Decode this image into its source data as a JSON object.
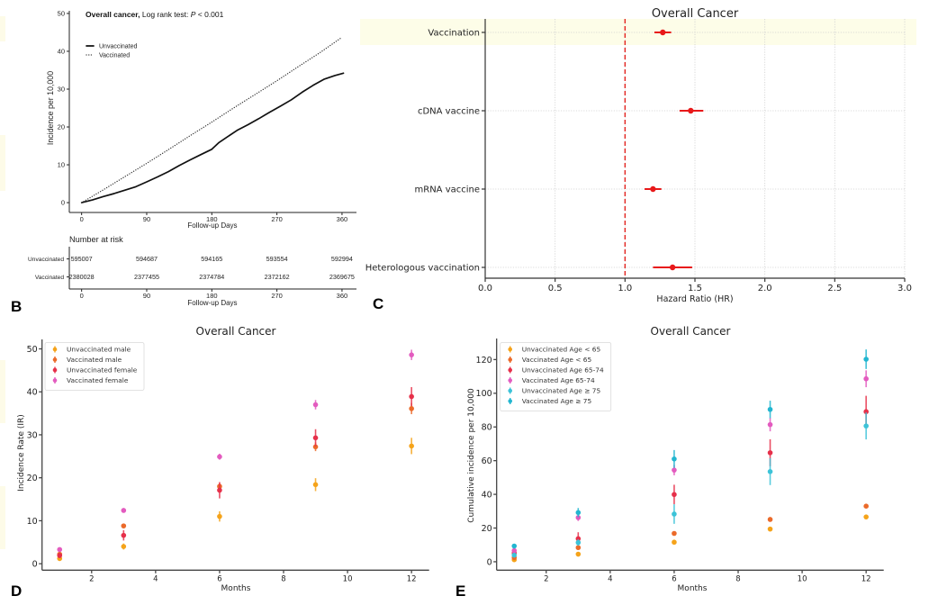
{
  "figure": {
    "panel_labels": {
      "B": "B",
      "C": "C",
      "D": "D",
      "E": "E"
    }
  },
  "chart_data": [
    {
      "panel": "B",
      "type": "line",
      "title": {
        "bold": "Overall cancer,",
        "text": " Log rank test: ",
        "p_symbol": "P",
        "p_value": " < 0.001"
      },
      "xlabel": "Follow-up Days",
      "ylabel": "Incidence per 10,000",
      "xlim": [
        -17,
        380
      ],
      "ylim": [
        -2.6,
        50.7
      ],
      "xticks": [
        0,
        90,
        180,
        270,
        360
      ],
      "yticks": [
        0,
        10,
        20,
        30,
        40,
        50
      ],
      "grid": false,
      "legend": "top-left",
      "series": [
        {
          "name": "Unvaccinated",
          "style": "solid",
          "color": "#111111",
          "x": [
            0,
            15,
            30,
            45,
            60,
            75,
            90,
            105,
            120,
            135,
            150,
            165,
            180,
            190,
            200,
            215,
            230,
            245,
            260,
            275,
            290,
            305,
            320,
            335,
            350,
            362
          ],
          "y": [
            0,
            0.7,
            1.6,
            2.4,
            3.3,
            4.2,
            5.5,
            6.8,
            8.2,
            9.8,
            11.3,
            12.7,
            14.1,
            15.9,
            17.2,
            19.1,
            20.6,
            22.2,
            23.9,
            25.5,
            27.2,
            29.2,
            31.0,
            32.6,
            33.6,
            34.2
          ]
        },
        {
          "name": "Vaccinated",
          "style": "dotted",
          "color": "#333333",
          "x": [
            0,
            30,
            60,
            90,
            120,
            150,
            180,
            210,
            240,
            270,
            300,
            330,
            360
          ],
          "y": [
            0,
            3.4,
            6.9,
            10.4,
            14.0,
            17.7,
            21.3,
            25.0,
            28.6,
            32.2,
            36.0,
            39.7,
            43.7
          ]
        }
      ],
      "risk_table": {
        "title": "Number at risk",
        "xlabel": "Follow-up Days",
        "x": [
          0,
          90,
          180,
          270,
          360
        ],
        "rows": [
          {
            "label": "Unvaccinated",
            "values": [
              "595007",
              "594687",
              "594165",
              "593554",
              "592994"
            ]
          },
          {
            "label": "Vaccinated",
            "values": [
              "2380028",
              "2377455",
              "2374784",
              "2372162",
              "2369675"
            ]
          }
        ]
      }
    },
    {
      "panel": "C",
      "type": "scatter",
      "subtype": "forest",
      "title": "Overall Cancer",
      "xlabel": "Hazard Ratio (HR)",
      "ylabel": "",
      "xlim": [
        0,
        3
      ],
      "xticks": [
        0,
        0.5,
        1,
        1.5,
        2,
        2.5,
        3
      ],
      "xtick_labels": [
        "0.0",
        "0.5",
        "1.0",
        "1.5",
        "2.0",
        "2.5",
        "3.0"
      ],
      "grid": true,
      "reference_line": 1.0,
      "reference_color": "#e3241f",
      "color": "#e8191a",
      "highlighted": "Vaccination",
      "categories": [
        "Vaccination",
        "cDNA vaccine",
        "mRNA vaccine",
        "Heterologous vaccination"
      ],
      "hr": [
        1.27,
        1.47,
        1.2,
        1.34
      ],
      "ci_low": [
        1.21,
        1.39,
        1.14,
        1.2
      ],
      "ci_high": [
        1.33,
        1.56,
        1.26,
        1.48
      ]
    },
    {
      "panel": "D",
      "type": "scatter",
      "title": "Overall Cancer",
      "xlabel": "Months",
      "ylabel": "Incidence Rate (IR)",
      "xlim": [
        0.45,
        12.55
      ],
      "ylim": [
        -1.5,
        52.2
      ],
      "xticks": [
        2,
        4,
        6,
        8,
        10,
        12
      ],
      "yticks": [
        0,
        10,
        20,
        30,
        40,
        50
      ],
      "grid": false,
      "legend": "top-left",
      "x": [
        1,
        3,
        6,
        9,
        12
      ],
      "series": [
        {
          "name": "Unvaccinated male",
          "color": "#f5a31a",
          "y": [
            1.2,
            4.0,
            11.0,
            18.4,
            27.4
          ],
          "err": [
            0.4,
            0.7,
            1.2,
            1.5,
            1.9
          ]
        },
        {
          "name": "Vaccinated male",
          "color": "#eb6a2a",
          "y": [
            2.2,
            8.8,
            18.0,
            27.2,
            36.1
          ],
          "err": [
            0.3,
            0.5,
            0.7,
            1.0,
            1.3
          ]
        },
        {
          "name": "Unvaccinated female",
          "color": "#e6304a",
          "y": [
            1.9,
            6.6,
            17.1,
            29.3,
            38.9
          ],
          "err": [
            0.6,
            1.2,
            1.9,
            2.0,
            2.2
          ]
        },
        {
          "name": "Vaccinated female",
          "color": "#e35bbf",
          "y": [
            3.3,
            12.4,
            24.9,
            37.0,
            48.6
          ],
          "err": [
            0.3,
            0.5,
            0.7,
            1.1,
            1.2
          ]
        }
      ]
    },
    {
      "panel": "E",
      "type": "scatter",
      "title": "Overall Cancer",
      "xlabel": "Months",
      "ylabel": "Cumulative incidence per 10,000",
      "xlim": [
        0.45,
        12.55
      ],
      "ylim": [
        -5,
        132.5
      ],
      "xticks": [
        2,
        4,
        6,
        8,
        10,
        12
      ],
      "yticks": [
        0,
        20,
        40,
        60,
        80,
        100,
        120
      ],
      "grid": false,
      "legend": "top-left",
      "x": [
        1,
        3,
        6,
        9,
        12
      ],
      "series": [
        {
          "name": "Unvaccinated Age < 65",
          "color": "#f5a31a",
          "y": [
            1.2,
            4.5,
            11.6,
            19.4,
            26.6
          ],
          "err": [
            0.2,
            0.4,
            0.5,
            0.6,
            0.7
          ]
        },
        {
          "name": "Vaccinated Age < 65",
          "color": "#eb6a2a",
          "y": [
            2.5,
            8.4,
            16.8,
            25.1,
            33.0
          ],
          "err": [
            0.2,
            0.4,
            0.5,
            0.6,
            0.7
          ]
        },
        {
          "name": "Unvaccinated Age 65-74",
          "color": "#e6304a",
          "y": [
            5.2,
            13.7,
            39.9,
            64.7,
            89.1
          ],
          "err": [
            1.3,
            3.8,
            5.8,
            8.0,
            9.4
          ]
        },
        {
          "name": "Vaccinated Age 65-74",
          "color": "#e35bbf",
          "y": [
            6.6,
            26.2,
            54.4,
            81.4,
            108.6
          ],
          "err": [
            0.8,
            2.0,
            3.1,
            4.0,
            5.0
          ]
        },
        {
          "name": "Unvaccinated Age ≥ 75",
          "color": "#3cc3d8",
          "y": [
            3.9,
            11.4,
            28.3,
            53.5,
            80.6
          ],
          "err": [
            1.0,
            1.9,
            5.8,
            8.0,
            8.0
          ]
        },
        {
          "name": "Vaccinated Age ≥ 75",
          "color": "#22b6d0",
          "y": [
            9.3,
            29.2,
            61.0,
            90.4,
            120.2
          ],
          "err": [
            0.8,
            2.7,
            5.3,
            5.2,
            5.8
          ]
        }
      ]
    }
  ]
}
